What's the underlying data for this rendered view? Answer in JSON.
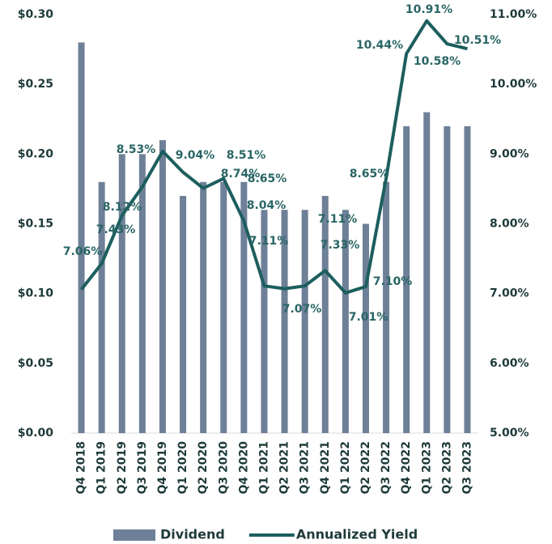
{
  "chart_data": {
    "type": "bar-line",
    "categories": [
      "Q4 2018",
      "Q1 2019",
      "Q2 2019",
      "Q3 2019",
      "Q4 2019",
      "Q1 2020",
      "Q2 2020",
      "Q3 2020",
      "Q4 2020",
      "Q1 2021",
      "Q2 2021",
      "Q3 2021",
      "Q4 2021",
      "Q1 2022",
      "Q2 2022",
      "Q3 2022",
      "Q4 2022",
      "Q1 2023",
      "Q2 2023",
      "Q3 2023"
    ],
    "series": [
      {
        "name": "Dividend",
        "type": "bar",
        "color": "#6e8098",
        "values": [
          0.28,
          0.18,
          0.2,
          0.2,
          0.21,
          0.17,
          0.18,
          0.18,
          0.18,
          0.16,
          0.16,
          0.16,
          0.17,
          0.16,
          0.15,
          0.18,
          0.22,
          0.23,
          0.22,
          0.22
        ]
      },
      {
        "name": "Annualized Yield",
        "type": "line",
        "axis": "y2",
        "color": "#1d5e5e",
        "values": [
          7.06,
          7.43,
          8.12,
          8.53,
          9.04,
          8.74,
          8.51,
          8.65,
          8.04,
          7.11,
          7.07,
          7.11,
          7.33,
          7.01,
          7.1,
          8.65,
          10.44,
          10.91,
          10.58,
          10.51
        ],
        "value_labels": [
          "7.06%",
          "7.43%",
          "8.12%",
          "8.53%",
          "9.04%",
          "8.74%",
          "8.51%",
          "8.65%",
          "8.04%",
          "7.11%",
          "7.07%",
          "7.11%",
          "7.33%",
          "7.01%",
          "7.10%",
          "8.65%",
          "10.44%",
          "10.91%",
          "10.58%",
          "10.51%"
        ]
      }
    ],
    "ylim": [
      0,
      0.3
    ],
    "yticks": [
      {
        "value": 0,
        "label": "$0.00"
      },
      {
        "value": 0.05,
        "label": "$0.05"
      },
      {
        "value": 0.1,
        "label": "$0.10"
      },
      {
        "value": 0.15,
        "label": "$0.15"
      },
      {
        "value": 0.2,
        "label": "$0.20"
      },
      {
        "value": 0.25,
        "label": "$0.25"
      },
      {
        "value": 0.3,
        "label": "$0.30"
      }
    ],
    "y2lim": [
      5,
      11
    ],
    "y2ticks": [
      {
        "value": 5,
        "label": "5.00%"
      },
      {
        "value": 6,
        "label": "6.00%"
      },
      {
        "value": 7,
        "label": "7.00%"
      },
      {
        "value": 8,
        "label": "8.00%"
      },
      {
        "value": 9,
        "label": "9.00%"
      },
      {
        "value": 10,
        "label": "10.00%"
      },
      {
        "value": 11,
        "label": "11.00%"
      }
    ],
    "legend": "bottom"
  }
}
